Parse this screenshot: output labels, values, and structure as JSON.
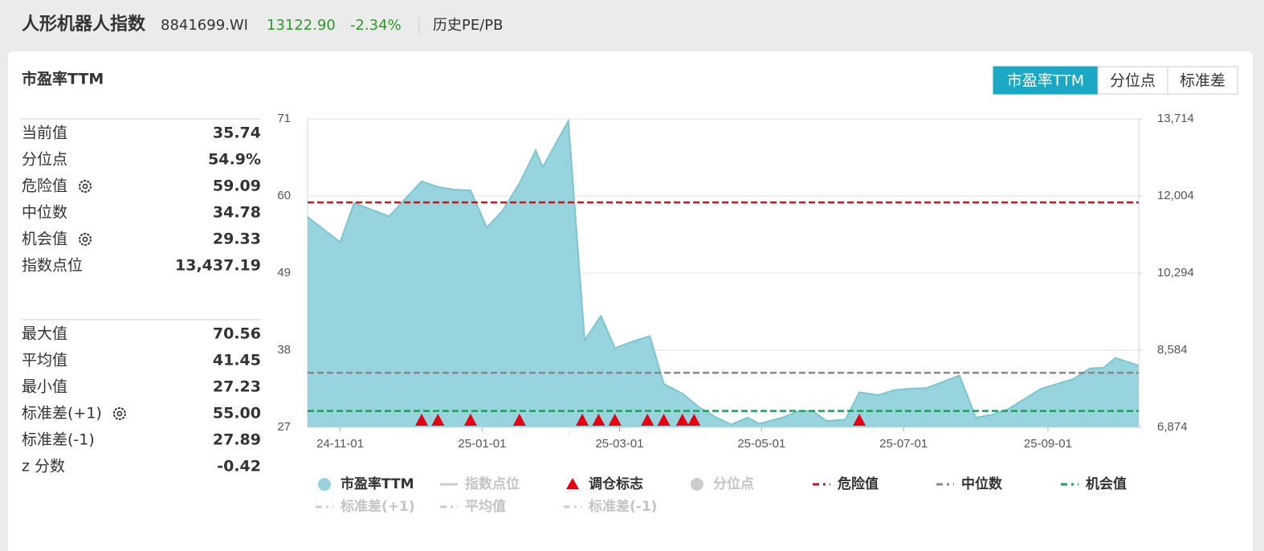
{
  "header": {
    "title": "人形机器人指数",
    "code": "8841699.WI",
    "price": "13122.90",
    "change": "-2.34%",
    "link": "历史PE/PB"
  },
  "panel": {
    "title": "市盈率TTM",
    "tabs": [
      {
        "label": "市盈率TTM",
        "active": true
      },
      {
        "label": "分位点",
        "active": false
      },
      {
        "label": "标准差",
        "active": false
      }
    ],
    "stats": [
      {
        "rows": [
          {
            "name": "当前值",
            "value": 35.74,
            "label": "35.74",
            "gear": false
          },
          {
            "name": "分位点",
            "value": 54.9,
            "label": "54.9%",
            "gear": false
          },
          {
            "name": "危险值",
            "value": 59.09,
            "label": "59.09",
            "gear": true
          },
          {
            "name": "中位数",
            "value": 34.78,
            "label": "34.78",
            "gear": false
          },
          {
            "name": "机会值",
            "value": 29.33,
            "label": "29.33",
            "gear": true
          },
          {
            "name": "指数点位",
            "value": 13437.19,
            "label": "13,437.19",
            "gear": false
          }
        ]
      },
      {
        "rows": [
          {
            "name": "最大值",
            "value": 70.56,
            "label": "70.56",
            "gear": false
          },
          {
            "name": "平均值",
            "value": 41.45,
            "label": "41.45",
            "gear": false
          },
          {
            "name": "最小值",
            "value": 27.23,
            "label": "27.23",
            "gear": false
          },
          {
            "name": "标准差(+1)",
            "value": 55.0,
            "label": "55.00",
            "gear": true
          },
          {
            "name": "标准差(-1)",
            "value": 27.89,
            "label": "27.89",
            "gear": false
          },
          {
            "name": "z 分数",
            "value": -0.42,
            "label": "-0.42",
            "gear": false
          }
        ]
      }
    ]
  },
  "chart_data": {
    "type": "area",
    "x": [
      "24-10-18",
      "24-11-01",
      "24-11-07",
      "24-11-22",
      "24-12-06",
      "24-12-13",
      "24-12-20",
      "24-12-27",
      "25-01-03",
      "25-01-10",
      "25-01-17",
      "25-01-24",
      "25-01-27",
      "25-02-07",
      "25-02-14",
      "25-02-21",
      "25-02-27",
      "25-03-07",
      "25-03-14",
      "25-03-20",
      "25-03-28",
      "25-04-04",
      "25-04-11",
      "25-04-18",
      "25-04-25",
      "25-04-30",
      "25-05-10",
      "25-05-17",
      "25-05-23",
      "25-05-29",
      "25-06-06",
      "25-06-12",
      "25-06-20",
      "25-06-27",
      "25-07-03",
      "25-07-11",
      "25-07-25",
      "25-08-01",
      "25-08-08",
      "25-08-15",
      "25-08-29",
      "25-09-12",
      "25-09-19",
      "25-09-25",
      "25-09-30",
      "25-10-10"
    ],
    "series": [
      {
        "name": "市盈率TTM",
        "color": "#96d3dc",
        "values": [
          57.0,
          53.4,
          59.0,
          57.1,
          62.1,
          61.3,
          60.9,
          60.8,
          55.5,
          58.0,
          61.8,
          66.5,
          64.1,
          70.7,
          39.4,
          42.9,
          38.3,
          39.3,
          40.0,
          33.2,
          31.8,
          29.9,
          28.5,
          27.4,
          28.4,
          27.5,
          28.4,
          29.3,
          29.3,
          27.9,
          28.1,
          32.0,
          31.6,
          32.3,
          32.5,
          32.6,
          34.4,
          28.4,
          28.8,
          29.6,
          32.5,
          33.9,
          35.4,
          35.5,
          36.9,
          35.8
        ]
      }
    ],
    "rebalance_dates": [
      "24-12-06",
      "24-12-13",
      "24-12-27",
      "25-01-17",
      "25-02-13",
      "25-02-20",
      "25-02-27",
      "25-03-13",
      "25-03-20",
      "25-03-28",
      "25-04-02",
      "25-06-12"
    ],
    "reference_lines": [
      {
        "stat": "panel.stats.0.rows.2",
        "color": "#c9151e"
      },
      {
        "stat": "panel.stats.0.rows.3",
        "color": "#888888"
      },
      {
        "stat": "panel.stats.0.rows.4",
        "color": "#1e9e5a"
      }
    ],
    "xlim": [
      "24-10-18",
      "25-10-10"
    ],
    "xticks": [
      "24-11-01",
      "25-01-01",
      "25-03-01",
      "25-05-01",
      "25-07-01",
      "25-09-01"
    ],
    "ylim": [
      27,
      71
    ],
    "yticks": [
      27,
      38,
      49,
      60,
      71
    ],
    "y2lim": [
      6874,
      13714
    ],
    "y2ticks": [
      {
        "value": 6874,
        "label": "6,874"
      },
      {
        "value": 8584,
        "label": "8,584"
      },
      {
        "value": 10294,
        "label": "10,294"
      },
      {
        "value": 12004,
        "label": "12,004"
      },
      {
        "value": 13714,
        "label": "13,714"
      }
    ],
    "grid": true,
    "legend": [
      {
        "name": "市盈率TTM",
        "symbol": "circle",
        "color": "#96d3dc",
        "active": true
      },
      {
        "name": "指数点位",
        "symbol": "line",
        "color": "#cccccc",
        "active": false
      },
      {
        "name": "调仓标志",
        "symbol": "triangle",
        "color": "#e60012",
        "active": true
      },
      {
        "name": "分位点",
        "symbol": "circle",
        "color": "#cccccc",
        "active": false
      },
      {
        "name": "危险值",
        "symbol": "dash",
        "color": "#c9151e",
        "active": true
      },
      {
        "name": "中位数",
        "symbol": "dash",
        "color": "#888888",
        "active": true
      },
      {
        "name": "机会值",
        "symbol": "dash",
        "color": "#1e9e5a",
        "active": true
      },
      {
        "name": "标准差(+1)",
        "symbol": "dash",
        "color": "#cccccc",
        "active": false
      },
      {
        "name": "平均值",
        "symbol": "dash",
        "color": "#cccccc",
        "active": false
      },
      {
        "name": "标准差(-1)",
        "symbol": "dash",
        "color": "#cccccc",
        "active": false
      }
    ]
  }
}
